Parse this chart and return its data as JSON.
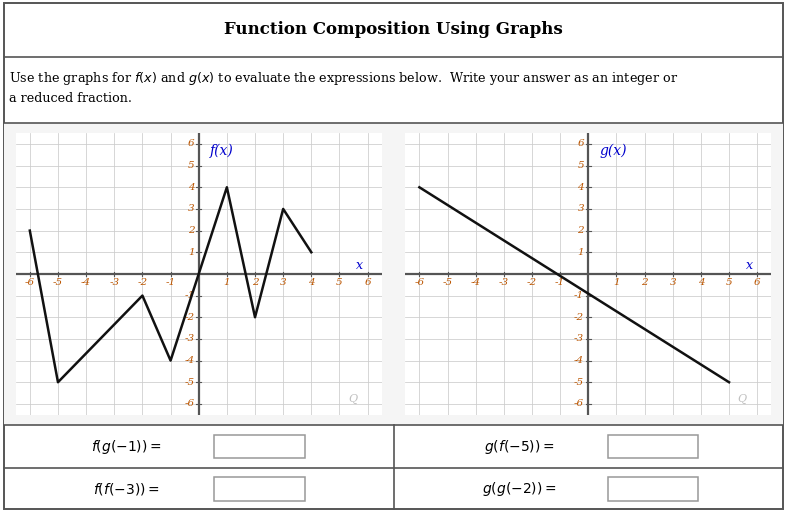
{
  "title": "Function Composition Using Graphs",
  "f_points": [
    [
      -6,
      2
    ],
    [
      -5,
      -5
    ],
    [
      -2,
      -1
    ],
    [
      -1,
      -4
    ],
    [
      1,
      4
    ],
    [
      2,
      -2
    ],
    [
      3,
      3
    ],
    [
      4,
      1
    ]
  ],
  "g_points": [
    [
      -6,
      4
    ],
    [
      5,
      -5
    ]
  ],
  "f_label": "f(x)",
  "g_label": "g(x)",
  "x_label": "x",
  "tick_color": "#bb5500",
  "axis_label_color": "#0000cc",
  "graph_line_color": "#111111",
  "grid_color": "#cccccc",
  "axis_color": "#555555",
  "bg_color": "#ffffff",
  "graph_bg": "#f5f5f5",
  "border_color": "#555555",
  "expr1": "$f(g(-1)) =$",
  "expr2": "$f(f(-3)) =$",
  "expr3": "$g(f(-5)) =$",
  "expr4": "$g(g(-2)) =$"
}
